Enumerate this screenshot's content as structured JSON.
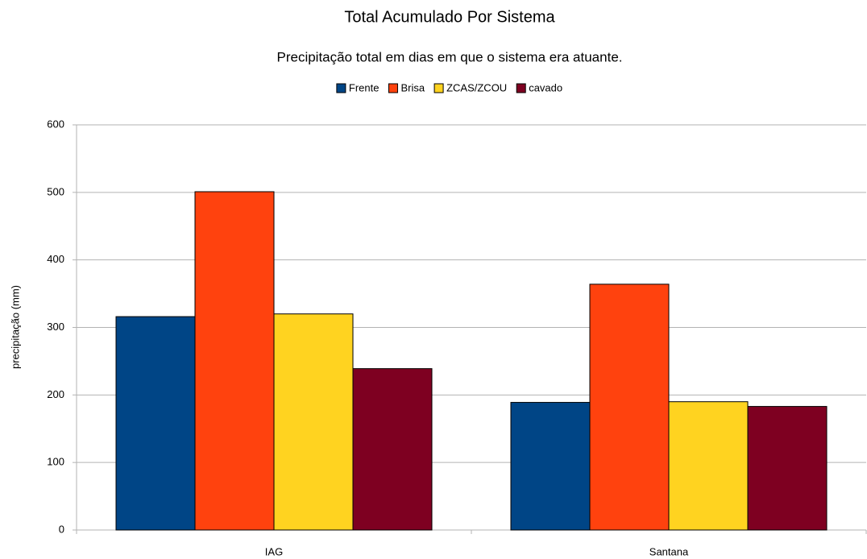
{
  "chart_data": {
    "type": "bar",
    "title": "Total Acumulado Por Sistema",
    "subtitle": "Precipitação total em dias em que o sistema era atuante.",
    "y_label": "precipitação (mm)",
    "categories": [
      "IAG",
      "Santana"
    ],
    "series": [
      {
        "name": "Frente",
        "color": "#004586",
        "values": [
          316,
          189
        ]
      },
      {
        "name": "Brisa",
        "color": "#ff420e",
        "values": [
          501,
          364
        ]
      },
      {
        "name": "ZCAS/ZCOU",
        "color": "#ffd320",
        "values": [
          320,
          190
        ]
      },
      {
        "name": "cavado",
        "color": "#7e0021",
        "values": [
          239,
          183
        ]
      }
    ],
    "ylim": [
      0,
      600
    ],
    "yticks": [
      0,
      100,
      200,
      300,
      400,
      500,
      600
    ],
    "grid": true,
    "legend": "top"
  }
}
